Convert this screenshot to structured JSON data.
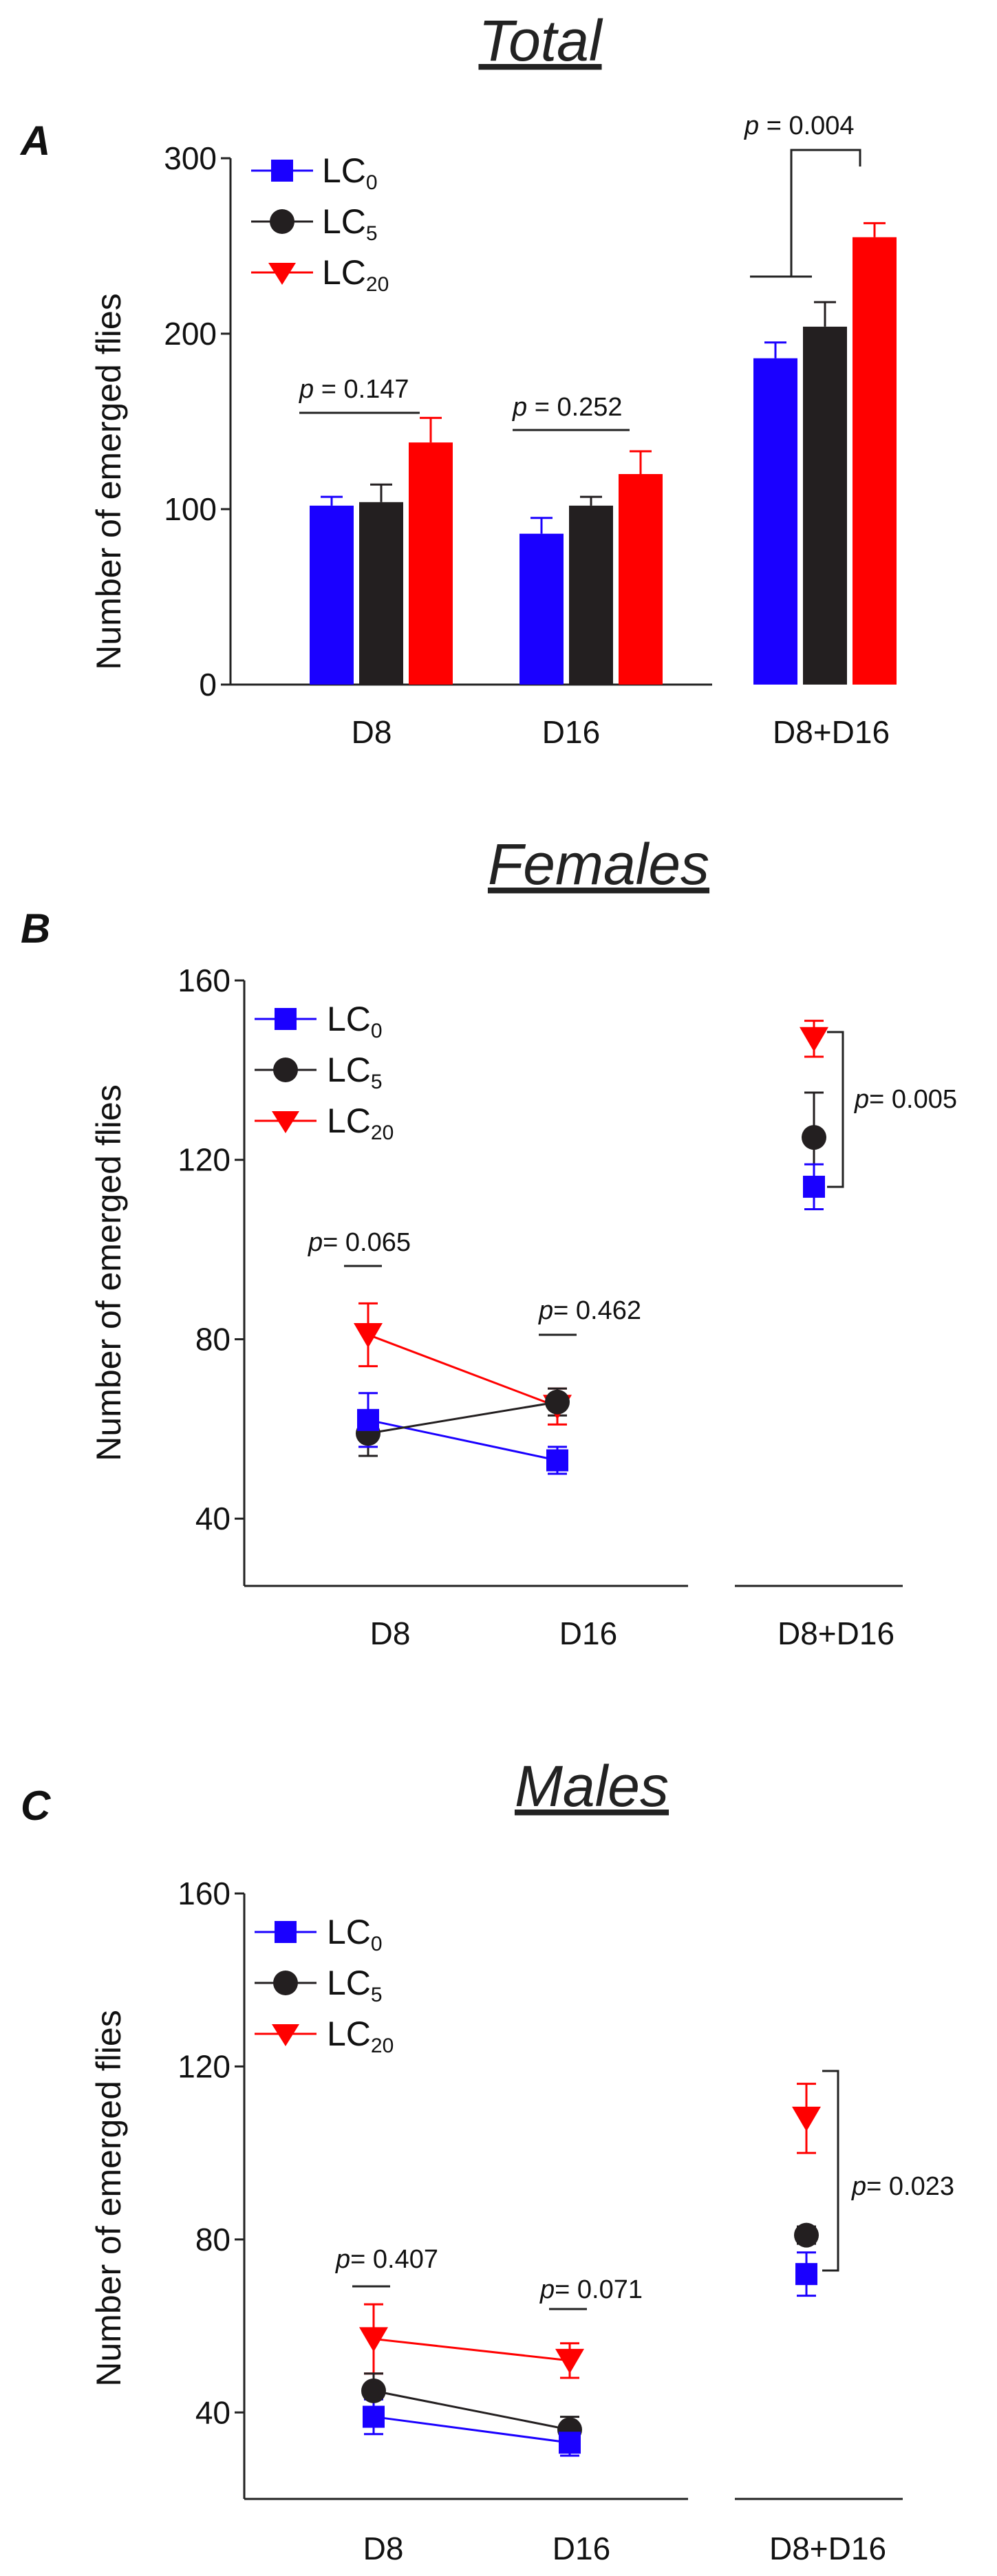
{
  "chart_data": [
    {
      "panel": "A",
      "type": "bar",
      "title": "Total",
      "ylabel": "Number of emerged  flies",
      "ylim": [
        0,
        300
      ],
      "yticks": [
        "0",
        "100",
        "200",
        "300"
      ],
      "categories": [
        "D8",
        "D16",
        "D8+D16"
      ],
      "legend": [
        {
          "base": "LC",
          "sub": "0",
          "color": "#1a00ff",
          "marker": "square"
        },
        {
          "base": "LC",
          "sub": "5",
          "color": "#231f20",
          "marker": "circle"
        },
        {
          "base": "LC",
          "sub": "20",
          "color": "#ff0000",
          "marker": "triangle-down"
        }
      ],
      "series": [
        {
          "name": "LC0",
          "values": [
            102,
            86,
            186
          ],
          "errors": [
            5,
            9,
            9
          ]
        },
        {
          "name": "LC5",
          "values": [
            104,
            102,
            204
          ],
          "errors": [
            10,
            5,
            14
          ]
        },
        {
          "name": "LC20",
          "values": [
            138,
            120,
            255
          ],
          "errors": [
            14,
            13,
            8
          ]
        }
      ],
      "annotations": [
        {
          "pre": "p",
          "post": " = 0.147"
        },
        {
          "pre": "p",
          "post": " = 0.252"
        },
        {
          "pre": "p",
          "post": " = 0.004"
        }
      ]
    },
    {
      "panel": "B",
      "type": "line",
      "title": "Females",
      "ylabel": "Number of emerged  flies",
      "ylim": [
        25,
        160
      ],
      "yticks": [
        "40",
        "80",
        "120",
        "160"
      ],
      "categories": [
        "D8",
        "D16",
        "D8+D16"
      ],
      "legend": [
        {
          "base": "LC",
          "sub": "0",
          "color": "#1a00ff",
          "marker": "square"
        },
        {
          "base": "LC",
          "sub": "5",
          "color": "#231f20",
          "marker": "circle"
        },
        {
          "base": "LC",
          "sub": "20",
          "color": "#ff0000",
          "marker": "triangle-down"
        }
      ],
      "series": [
        {
          "name": "LC0",
          "values": [
            62,
            53,
            114
          ],
          "errors": [
            6,
            3,
            5
          ]
        },
        {
          "name": "LC5",
          "values": [
            59,
            66,
            125
          ],
          "errors": [
            5,
            3,
            10
          ]
        },
        {
          "name": "LC20",
          "values": [
            81,
            65,
            147
          ],
          "errors": [
            7,
            4,
            4
          ]
        }
      ],
      "annotations": [
        {
          "pre": "p",
          "post": "= 0.065"
        },
        {
          "pre": "p",
          "post": "= 0.462"
        },
        {
          "pre": "p",
          "post": "= 0.005"
        }
      ]
    },
    {
      "panel": "C",
      "type": "line",
      "title": "Males",
      "ylabel": "Number of emerged  flies",
      "ylim": [
        20,
        160
      ],
      "yticks": [
        "40",
        "80",
        "120",
        "160"
      ],
      "categories": [
        "D8",
        "D16",
        "D8+D16"
      ],
      "legend": [
        {
          "base": "LC",
          "sub": "0",
          "color": "#1a00ff",
          "marker": "square"
        },
        {
          "base": "LC",
          "sub": "5",
          "color": "#231f20",
          "marker": "circle"
        },
        {
          "base": "LC",
          "sub": "20",
          "color": "#ff0000",
          "marker": "triangle-down"
        }
      ],
      "series": [
        {
          "name": "LC0",
          "values": [
            39,
            33,
            72
          ],
          "errors": [
            4,
            3,
            5
          ]
        },
        {
          "name": "LC5",
          "values": [
            45,
            36,
            81
          ],
          "errors": [
            4,
            3,
            2
          ]
        },
        {
          "name": "LC20",
          "values": [
            57,
            52,
            108
          ],
          "errors": [
            8,
            4,
            8
          ]
        }
      ],
      "annotations": [
        {
          "pre": "p",
          "post": "= 0.407"
        },
        {
          "pre": "p",
          "post": "= 0.071"
        },
        {
          "pre": "p",
          "post": "= 0.023"
        }
      ]
    }
  ]
}
